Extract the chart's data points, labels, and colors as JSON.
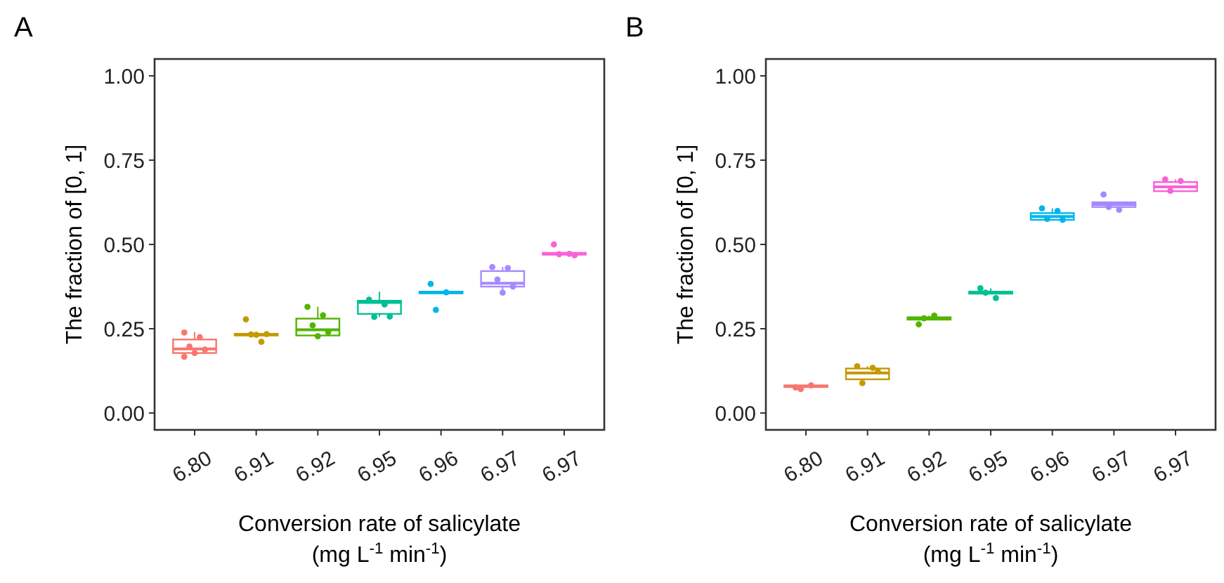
{
  "chart_data": [
    {
      "type": "box",
      "title": "A",
      "xlabel": "Conversion rate of salicylate\n(mg L$^{-1}$ min$^{-1}$)",
      "ylabel": "The fraction of [0, 1]",
      "categories": [
        "6.80",
        "6.91",
        "6.92",
        "6.95",
        "6.96",
        "6.97",
        "6.97"
      ],
      "colors": [
        "#f8766d",
        "#c49a00",
        "#53b400",
        "#00c094",
        "#00b6eb",
        "#a58aff",
        "#fb61d7"
      ],
      "boxes": [
        {
          "low": 0.17,
          "q1": 0.178,
          "median": 0.19,
          "q3": 0.218,
          "high": 0.24
        },
        {
          "low": 0.23,
          "q1": 0.23,
          "median": 0.233,
          "q3": 0.235,
          "high": 0.235
        },
        {
          "low": 0.228,
          "q1": 0.23,
          "median": 0.247,
          "q3": 0.28,
          "high": 0.315
        },
        {
          "low": 0.285,
          "q1": 0.294,
          "median": 0.328,
          "q3": 0.333,
          "high": 0.36
        },
        {
          "low": 0.355,
          "q1": 0.355,
          "median": 0.358,
          "q3": 0.36,
          "high": 0.36
        },
        {
          "low": 0.357,
          "q1": 0.375,
          "median": 0.385,
          "q3": 0.421,
          "high": 0.433
        },
        {
          "low": 0.47,
          "q1": 0.47,
          "median": 0.472,
          "q3": 0.475,
          "high": 0.475
        }
      ],
      "series": [
        {
          "type": "scatter",
          "colors": [
            "#f8766d",
            "#c49a00",
            "#53b400",
            "#00c094",
            "#00b6eb",
            "#a58aff",
            "#fb61d7"
          ],
          "values": [
            0.239,
            0.278,
            0.315,
            0.336,
            0.383,
            0.433,
            0.5
          ]
        },
        {
          "type": "scatter",
          "colors": [
            "#f8766d",
            "#c49a00",
            "#53b400",
            "#00c094",
            "#00b6eb",
            "#a58aff",
            "#fb61d7"
          ],
          "values": [
            0.225,
            0.211,
            0.29,
            0.322,
            0.358,
            0.43,
            0.472
          ]
        },
        {
          "type": "scatter",
          "colors": [
            "#f8766d",
            "#c49a00",
            "#53b400",
            "#00c094",
            "#00b6eb",
            "#a58aff",
            "#fb61d7"
          ],
          "values": [
            0.197,
            0.233,
            0.26,
            0.285,
            0.306,
            0.396,
            0.471
          ]
        },
        {
          "type": "scatter",
          "colors": [
            "#f8766d",
            "#c49a00",
            "#53b400",
            "#00c094",
            null,
            "#a58aff",
            "#fb61d7"
          ],
          "values": [
            0.188,
            0.234,
            0.24,
            0.286,
            null,
            0.375,
            0.468
          ]
        },
        {
          "type": "scatter",
          "colors": [
            "#f8766d",
            "#c49a00",
            "#53b400",
            null,
            null,
            "#a58aff",
            null
          ],
          "values": [
            0.178,
            0.232,
            0.228,
            null,
            null,
            0.357,
            null
          ]
        },
        {
          "type": "scatter",
          "colors": [
            "#f8766d",
            null,
            null,
            null,
            null,
            null,
            null
          ],
          "values": [
            0.167,
            null,
            null,
            null,
            null,
            null,
            null
          ]
        }
      ],
      "ylim": [
        -0.05,
        1.05
      ],
      "yticks": [
        {
          "value": 0,
          "label": "0.00"
        },
        {
          "value": 0.25,
          "label": "0.25"
        },
        {
          "value": 0.5,
          "label": "0.50"
        },
        {
          "value": 0.75,
          "label": "0.75"
        },
        {
          "value": 1,
          "label": "1.00"
        }
      ],
      "grid": false,
      "marker": "circle"
    },
    {
      "type": "box",
      "title": "B",
      "xlabel": "Conversion rate of salicylate\n(mg L$^{-1}$ min$^{-1}$)",
      "ylabel": "The fraction of [0, 1]",
      "categories": [
        "6.80",
        "6.91",
        "6.92",
        "6.95",
        "6.96",
        "6.97",
        "6.97"
      ],
      "colors": [
        "#f8766d",
        "#c49a00",
        "#53b400",
        "#00c094",
        "#00b6eb",
        "#a58aff",
        "#fb61d7"
      ],
      "boxes": [
        {
          "low": 0.076,
          "q1": 0.077,
          "median": 0.079,
          "q3": 0.082,
          "high": 0.082
        },
        {
          "low": 0.1,
          "q1": 0.1,
          "median": 0.119,
          "q3": 0.132,
          "high": 0.139
        },
        {
          "low": 0.277,
          "q1": 0.277,
          "median": 0.281,
          "q3": 0.284,
          "high": 0.289
        },
        {
          "low": 0.354,
          "q1": 0.354,
          "median": 0.357,
          "q3": 0.36,
          "high": 0.37
        },
        {
          "low": 0.573,
          "q1": 0.573,
          "median": 0.583,
          "q3": 0.593,
          "high": 0.607
        },
        {
          "low": 0.611,
          "q1": 0.611,
          "median": 0.619,
          "q3": 0.625,
          "high": 0.625
        },
        {
          "low": 0.658,
          "q1": 0.658,
          "median": 0.671,
          "q3": 0.685,
          "high": 0.693
        }
      ],
      "series": [
        {
          "type": "scatter",
          "colors": [
            "#f8766d",
            "#c49a00",
            "#53b400",
            "#00c094",
            "#00b6eb",
            "#a58aff",
            "#fb61d7"
          ],
          "values": [
            0.076,
            0.139,
            0.263,
            0.37,
            0.607,
            0.648,
            0.693
          ]
        },
        {
          "type": "scatter",
          "colors": [
            "#f8766d",
            "#c49a00",
            "#53b400",
            "#00c094",
            "#00b6eb",
            "#a58aff",
            "#fb61d7"
          ],
          "values": [
            0.082,
            0.134,
            0.289,
            0.341,
            0.599,
            0.603,
            0.688
          ]
        },
        {
          "type": "scatter",
          "colors": [
            "#f8766d",
            "#c49a00",
            "#53b400",
            "#00c094",
            "#00b6eb",
            "#a58aff",
            "#fb61d7"
          ],
          "values": [
            0.071,
            0.089,
            0.281,
            0.357,
            0.576,
            0.611,
            0.659
          ]
        },
        {
          "type": "scatter",
          "colors": [
            null,
            "#c49a00",
            null,
            null,
            "#00b6eb",
            null,
            null
          ],
          "values": [
            null,
            0.123,
            null,
            null,
            0.573,
            null,
            null
          ]
        }
      ],
      "ylim": [
        -0.05,
        1.05
      ],
      "yticks": [
        {
          "value": 0,
          "label": "0.00"
        },
        {
          "value": 0.25,
          "label": "0.25"
        },
        {
          "value": 0.5,
          "label": "0.50"
        },
        {
          "value": 0.75,
          "label": "0.75"
        },
        {
          "value": 1,
          "label": "1.00"
        }
      ],
      "grid": false,
      "marker": "circle"
    }
  ]
}
